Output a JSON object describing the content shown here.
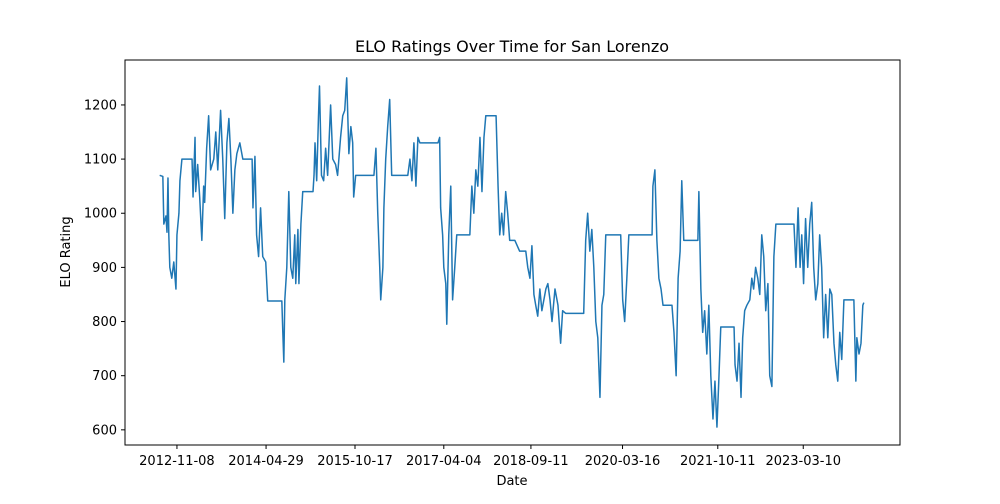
{
  "chart_data": {
    "type": "line",
    "title": "ELO Ratings Over Time for San Lorenzo",
    "xlabel": "Date",
    "ylabel": "ELO Rating",
    "x": [
      "2012-07-27",
      "2012-08-15",
      "2012-08-21",
      "2012-09-03",
      "2012-09-09",
      "2012-09-15",
      "2012-09-20",
      "2012-09-26",
      "2012-10-08",
      "2012-10-20",
      "2012-11-02",
      "2012-11-08",
      "2012-11-20",
      "2012-11-26",
      "2012-12-08",
      "2013-02-07",
      "2013-02-13",
      "2013-02-25",
      "2013-03-01",
      "2013-03-13",
      "2013-03-25",
      "2013-04-07",
      "2013-04-18",
      "2013-04-24",
      "2013-05-06",
      "2013-05-18",
      "2013-05-30",
      "2013-06-18",
      "2013-06-30",
      "2013-07-12",
      "2013-07-29",
      "2013-08-11",
      "2013-08-23",
      "2013-09-05",
      "2013-09-17",
      "2013-09-29",
      "2013-10-11",
      "2013-10-23",
      "2013-11-04",
      "2013-11-22",
      "2013-12-10",
      "2014-02-04",
      "2014-02-09",
      "2014-02-21",
      "2014-03-03",
      "2014-03-15",
      "2014-03-27",
      "2014-04-09",
      "2014-04-27",
      "2014-05-09",
      "2014-08-02",
      "2014-08-08",
      "2014-08-14",
      "2014-08-20",
      "2014-09-01",
      "2014-09-13",
      "2014-09-25",
      "2014-10-07",
      "2014-10-19",
      "2014-10-25",
      "2014-11-07",
      "2014-11-13",
      "2014-11-25",
      "2014-12-06",
      "2015-02-06",
      "2015-02-12",
      "2015-02-18",
      "2015-02-28",
      "2015-03-11",
      "2015-03-17",
      "2015-03-29",
      "2015-04-11",
      "2015-04-23",
      "2015-05-05",
      "2015-05-23",
      "2015-06-05",
      "2015-06-22",
      "2015-07-04",
      "2015-07-22",
      "2015-08-04",
      "2015-08-16",
      "2015-08-28",
      "2015-09-10",
      "2015-09-22",
      "2015-10-03",
      "2015-10-09",
      "2015-10-21",
      "2016-02-08",
      "2016-02-20",
      "2016-03-02",
      "2016-03-14",
      "2016-03-20",
      "2016-04-02",
      "2016-04-08",
      "2016-04-19",
      "2016-05-01",
      "2016-05-13",
      "2016-05-25",
      "2016-08-30",
      "2016-09-12",
      "2016-09-24",
      "2016-10-06",
      "2016-10-18",
      "2016-10-30",
      "2016-11-11",
      "2017-02-28",
      "2017-03-10",
      "2017-03-16",
      "2017-03-28",
      "2017-04-04",
      "2017-04-16",
      "2017-04-22",
      "2017-05-04",
      "2017-05-16",
      "2017-05-27",
      "2017-06-09",
      "2017-06-21",
      "2017-09-08",
      "2017-09-20",
      "2017-10-02",
      "2017-10-14",
      "2017-10-26",
      "2017-11-08",
      "2017-11-20",
      "2017-12-02",
      "2017-12-13",
      "2018-02-13",
      "2018-02-25",
      "2018-03-07",
      "2018-03-19",
      "2018-03-30",
      "2018-04-12",
      "2018-04-24",
      "2018-05-06",
      "2018-06-06",
      "2018-07-05",
      "2018-08-11",
      "2018-08-23",
      "2018-09-05",
      "2018-09-17",
      "2018-09-29",
      "2018-10-10",
      "2018-10-22",
      "2018-11-04",
      "2018-11-16",
      "2018-12-10",
      "2018-12-22",
      "2019-01-04",
      "2019-01-16",
      "2019-02-03",
      "2019-02-21",
      "2019-03-09",
      "2019-03-21",
      "2019-04-09",
      "2019-07-26",
      "2019-08-07",
      "2019-08-19",
      "2019-09-01",
      "2019-09-13",
      "2019-09-25",
      "2019-10-07",
      "2019-10-19",
      "2019-11-01",
      "2019-11-13",
      "2019-11-24",
      "2019-12-06",
      "2020-03-05",
      "2020-03-17",
      "2020-03-29",
      "2020-04-11",
      "2020-04-23",
      "2020-09-10",
      "2020-09-15",
      "2020-09-27",
      "2020-10-09",
      "2020-10-21",
      "2020-11-03",
      "2020-11-15",
      "2021-01-08",
      "2021-01-20",
      "2021-02-02",
      "2021-02-14",
      "2021-02-26",
      "2021-03-08",
      "2021-03-20",
      "2021-06-13",
      "2021-06-19",
      "2021-07-01",
      "2021-07-12",
      "2021-07-24",
      "2021-08-06",
      "2021-08-18",
      "2021-08-30",
      "2021-09-12",
      "2021-09-24",
      "2021-10-06",
      "2021-10-17",
      "2021-10-29",
      "2022-01-17",
      "2022-01-23",
      "2022-02-04",
      "2022-02-16",
      "2022-02-28",
      "2022-03-10",
      "2022-03-22",
      "2022-04-04",
      "2022-04-22",
      "2022-05-04",
      "2022-05-15",
      "2022-05-27",
      "2022-06-09",
      "2022-06-21",
      "2022-07-03",
      "2022-07-15",
      "2022-07-27",
      "2022-08-09",
      "2022-08-20",
      "2022-09-02",
      "2022-09-14",
      "2022-09-26",
      "2023-01-13",
      "2023-01-25",
      "2023-02-07",
      "2023-02-19",
      "2023-03-01",
      "2023-03-12",
      "2023-03-24",
      "2023-04-06",
      "2023-04-18",
      "2023-04-30",
      "2023-05-12",
      "2023-05-24",
      "2023-06-06",
      "2023-06-17",
      "2023-06-29",
      "2023-07-11",
      "2023-07-23",
      "2023-08-05",
      "2023-08-17",
      "2023-08-29",
      "2023-09-11",
      "2023-09-22",
      "2023-10-04",
      "2023-10-16",
      "2023-10-28",
      "2023-11-10",
      "2024-01-09",
      "2024-01-21",
      "2024-01-27",
      "2024-02-09",
      "2024-02-21",
      "2024-03-03",
      "2024-03-09"
    ],
    "series": [
      {
        "color": "#1f77b4",
        "values": [
          1070,
          1068,
          980,
          995,
          965,
          1065,
          960,
          900,
          880,
          910,
          860,
          960,
          1000,
          1060,
          1100,
          1100,
          1030,
          1140,
          1040,
          1090,
          1030,
          950,
          1050,
          1020,
          1120,
          1180,
          1080,
          1100,
          1150,
          1080,
          1190,
          1100,
          990,
          1130,
          1175,
          1100,
          1000,
          1080,
          1110,
          1130,
          1100,
          1100,
          1010,
          1105,
          960,
          920,
          1010,
          920,
          910,
          838,
          838,
          780,
          725,
          840,
          900,
          1040,
          900,
          880,
          960,
          870,
          970,
          870,
          980,
          1040,
          1040,
          1070,
          1130,
          1060,
          1180,
          1235,
          1070,
          1060,
          1120,
          1070,
          1200,
          1100,
          1090,
          1070,
          1140,
          1180,
          1190,
          1250,
          1110,
          1160,
          1130,
          1030,
          1070,
          1070,
          1120,
          1000,
          900,
          840,
          900,
          1010,
          1100,
          1160,
          1210,
          1070,
          1070,
          1100,
          1060,
          1130,
          1050,
          1140,
          1130,
          1130,
          1140,
          1010,
          960,
          900,
          870,
          795,
          960,
          1050,
          840,
          900,
          960,
          960,
          1050,
          1000,
          1080,
          1050,
          1140,
          1040,
          1140,
          1180,
          1180,
          1050,
          960,
          1000,
          960,
          1040,
          1000,
          950,
          950,
          930,
          930,
          900,
          880,
          940,
          850,
          830,
          810,
          860,
          820,
          860,
          870,
          840,
          800,
          860,
          830,
          760,
          820,
          815,
          815,
          950,
          1000,
          930,
          970,
          900,
          800,
          770,
          660,
          830,
          850,
          960,
          960,
          840,
          800,
          880,
          960,
          960,
          1050,
          1080,
          950,
          880,
          860,
          830,
          830,
          780,
          700,
          880,
          930,
          1060,
          950,
          950,
          1040,
          860,
          780,
          820,
          740,
          830,
          700,
          620,
          690,
          605,
          690,
          790,
          790,
          720,
          690,
          760,
          660,
          770,
          820,
          830,
          840,
          880,
          860,
          900,
          880,
          850,
          960,
          920,
          820,
          870,
          700,
          680,
          920,
          980,
          980,
          900,
          1010,
          900,
          960,
          870,
          990,
          900,
          980,
          1020,
          900,
          840,
          870,
          960,
          900,
          770,
          850,
          770,
          860,
          850,
          760,
          720,
          690,
          780,
          730,
          840,
          840,
          690,
          770,
          740,
          760,
          830,
          835
        ]
      }
    ],
    "xlim": [
      "2011-12-31",
      "2024-10-13"
    ],
    "xticks": [
      "2012-11-08",
      "2014-04-29",
      "2015-10-17",
      "2017-04-04",
      "2018-09-11",
      "2020-03-16",
      "2021-10-11",
      "2023-03-10"
    ],
    "ylim": [
      572,
      1283
    ],
    "yticks": [
      600,
      700,
      800,
      900,
      1000,
      1100,
      1200
    ]
  }
}
